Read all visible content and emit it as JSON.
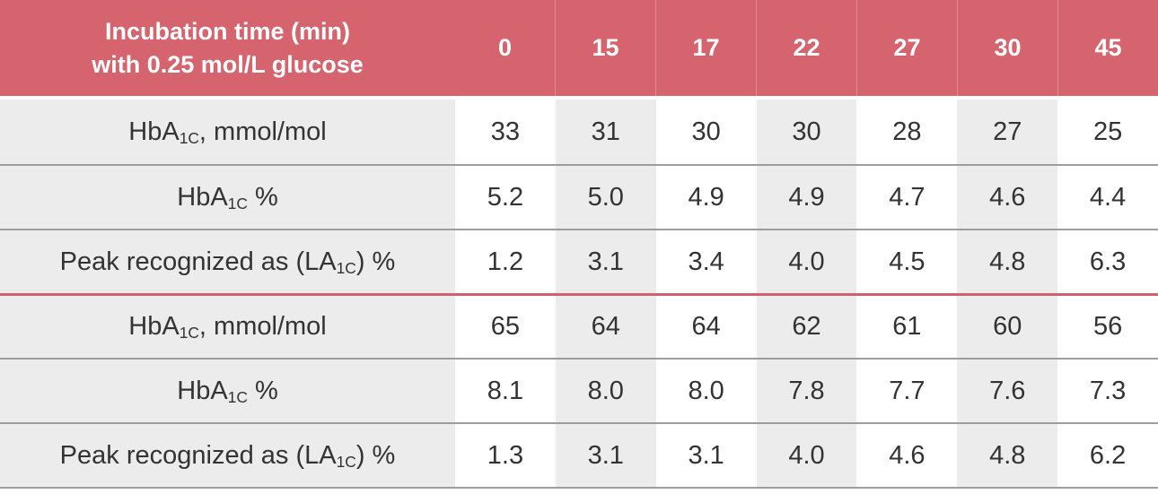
{
  "colors": {
    "header_background": "#d5646e",
    "group_divider_red": "#d45f6b",
    "row_background_gray": "#ececec",
    "row_background_white": "#ffffff",
    "row_separator_gray": "#9d9d9d",
    "header_text": "#ffffff",
    "body_text": "#333333"
  },
  "table": {
    "header": {
      "label_line1": "Incubation time (min)",
      "label_line2": "with 0.25 mol/L glucose",
      "columns": [
        "0",
        "15",
        "17",
        "22",
        "27",
        "30",
        "45"
      ]
    },
    "rows": [
      {
        "label": {
          "pre": "HbA",
          "sub": "1C",
          "post": ", mmol/mol"
        },
        "values": [
          "33",
          "31",
          "30",
          "30",
          "28",
          "27",
          "25"
        ]
      },
      {
        "label": {
          "pre": "HbA",
          "sub": "1C",
          "post": " %"
        },
        "values": [
          "5.2",
          "5.0",
          "4.9",
          "4.9",
          "4.7",
          "4.6",
          "4.4"
        ]
      },
      {
        "label": {
          "pre": "Peak recognized as (LA",
          "sub": "1C",
          "post": ") %"
        },
        "values": [
          "1.2",
          "3.1",
          "3.4",
          "4.0",
          "4.5",
          "4.8",
          "6.3"
        ]
      },
      {
        "label": {
          "pre": "HbA",
          "sub": "1C",
          "post": ", mmol/mol"
        },
        "values": [
          "65",
          "64",
          "64",
          "62",
          "61",
          "60",
          "56"
        ]
      },
      {
        "label": {
          "pre": "HbA",
          "sub": "1C",
          "post": " %"
        },
        "values": [
          "8.1",
          "8.0",
          "8.0",
          "7.8",
          "7.7",
          "7.6",
          "7.3"
        ]
      },
      {
        "label": {
          "pre": "Peak recognized as (LA",
          "sub": "1C",
          "post": ") %"
        },
        "values": [
          "1.3",
          "3.1",
          "3.1",
          "4.0",
          "4.6",
          "4.8",
          "6.2"
        ]
      }
    ]
  },
  "chart_data": {
    "type": "table",
    "title": "",
    "columns": [
      "Incubation time (min) with 0.25 mol/L glucose",
      "0",
      "15",
      "17",
      "22",
      "27",
      "30",
      "45"
    ],
    "row_groups": [
      {
        "rows": [
          {
            "label": "HbA1C, mmol/mol",
            "values": [
              33,
              31,
              30,
              30,
              28,
              27,
              25
            ]
          },
          {
            "label": "HbA1C %",
            "values": [
              5.2,
              5.0,
              4.9,
              4.9,
              4.7,
              4.6,
              4.4
            ]
          },
          {
            "label": "Peak recognized as (LA1C) %",
            "values": [
              1.2,
              3.1,
              3.4,
              4.0,
              4.5,
              4.8,
              6.3
            ]
          }
        ]
      },
      {
        "rows": [
          {
            "label": "HbA1C, mmol/mol",
            "values": [
              65,
              64,
              64,
              62,
              61,
              60,
              56
            ]
          },
          {
            "label": "HbA1C %",
            "values": [
              8.1,
              8.0,
              8.0,
              7.8,
              7.7,
              7.6,
              7.3
            ]
          },
          {
            "label": "Peak recognized as (LA1C) %",
            "values": [
              1.3,
              3.1,
              3.1,
              4.0,
              4.6,
              4.8,
              6.2
            ]
          }
        ]
      }
    ],
    "layout": {
      "header_fill": "#d5646e",
      "column_striping": "data columns alternate white/gray starting white",
      "group_separator": "red horizontal line between group 1 and group 2"
    }
  }
}
